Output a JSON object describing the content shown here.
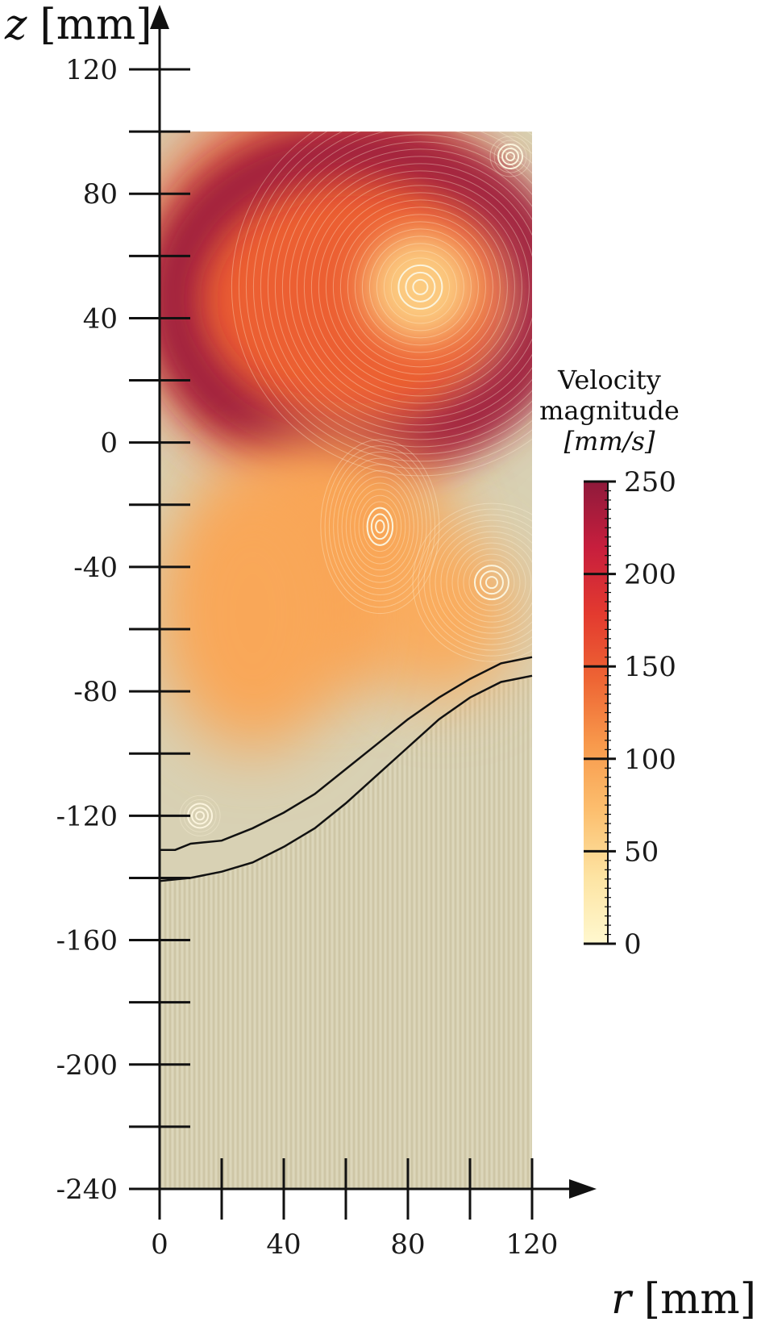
{
  "chart_data": {
    "type": "heatmap",
    "title": "",
    "xlabel": {
      "var": "r",
      "unit": "[mm]"
    },
    "ylabel": {
      "var": "z",
      "unit": "[mm]"
    },
    "xlim": [
      0,
      120
    ],
    "ylim": [
      -240,
      120
    ],
    "x_ticks": [
      0,
      40,
      80,
      120
    ],
    "x_minor_ticks": [
      20,
      60,
      100
    ],
    "y_ticks": [
      120,
      80,
      40,
      0,
      -40,
      -80,
      -120,
      -160,
      -200,
      -240
    ],
    "y_minor_ticks": [
      100,
      60,
      20,
      -20,
      -60,
      -100,
      -140,
      -180,
      -220
    ],
    "tick_labels_x": [
      "0",
      "40",
      "80",
      "120"
    ],
    "tick_labels_y": [
      "120",
      "80",
      "40",
      "0",
      "-40",
      "-80",
      "-120",
      "-160",
      "-200",
      "-240"
    ],
    "field_extent": {
      "r": [
        0,
        120
      ],
      "z": [
        -240,
        100
      ]
    },
    "vortices": [
      {
        "r": 84,
        "z": 50,
        "peak_speed": 240
      },
      {
        "r": 71,
        "z": -27,
        "peak_speed": 130
      },
      {
        "r": 107,
        "z": -45,
        "peak_speed": 120
      },
      {
        "r": 13,
        "z": -120,
        "peak_speed": 40
      },
      {
        "r": 113,
        "z": 92,
        "peak_speed": 60
      }
    ],
    "interface_lines": [
      {
        "points": [
          [
            0,
            -131
          ],
          [
            5,
            -131
          ],
          [
            10,
            -129
          ],
          [
            20,
            -128
          ],
          [
            30,
            -124
          ],
          [
            40,
            -119
          ],
          [
            50,
            -113
          ],
          [
            60,
            -105
          ],
          [
            70,
            -97
          ],
          [
            80,
            -89
          ],
          [
            90,
            -82
          ],
          [
            100,
            -76
          ],
          [
            110,
            -71
          ],
          [
            120,
            -69
          ]
        ]
      },
      {
        "points": [
          [
            0,
            -141
          ],
          [
            10,
            -140
          ],
          [
            20,
            -138
          ],
          [
            30,
            -135
          ],
          [
            40,
            -130
          ],
          [
            50,
            -124
          ],
          [
            60,
            -116
          ],
          [
            70,
            -107
          ],
          [
            80,
            -98
          ],
          [
            90,
            -89
          ],
          [
            100,
            -82
          ],
          [
            110,
            -77
          ],
          [
            120,
            -75
          ]
        ]
      }
    ],
    "colorbar": {
      "title_lines": [
        "Velocity",
        "magnitude",
        "[mm/s]"
      ],
      "range": [
        0,
        250
      ],
      "ticks": [
        0,
        50,
        100,
        150,
        200,
        250
      ],
      "tick_labels": [
        "0",
        "50",
        "100",
        "150",
        "200",
        "250"
      ],
      "colors": [
        "#fff8cf",
        "#fde4a3",
        "#fcbf6f",
        "#f89a4c",
        "#ee6534",
        "#e33a2f",
        "#c71e3d",
        "#8f1a3b"
      ]
    }
  }
}
